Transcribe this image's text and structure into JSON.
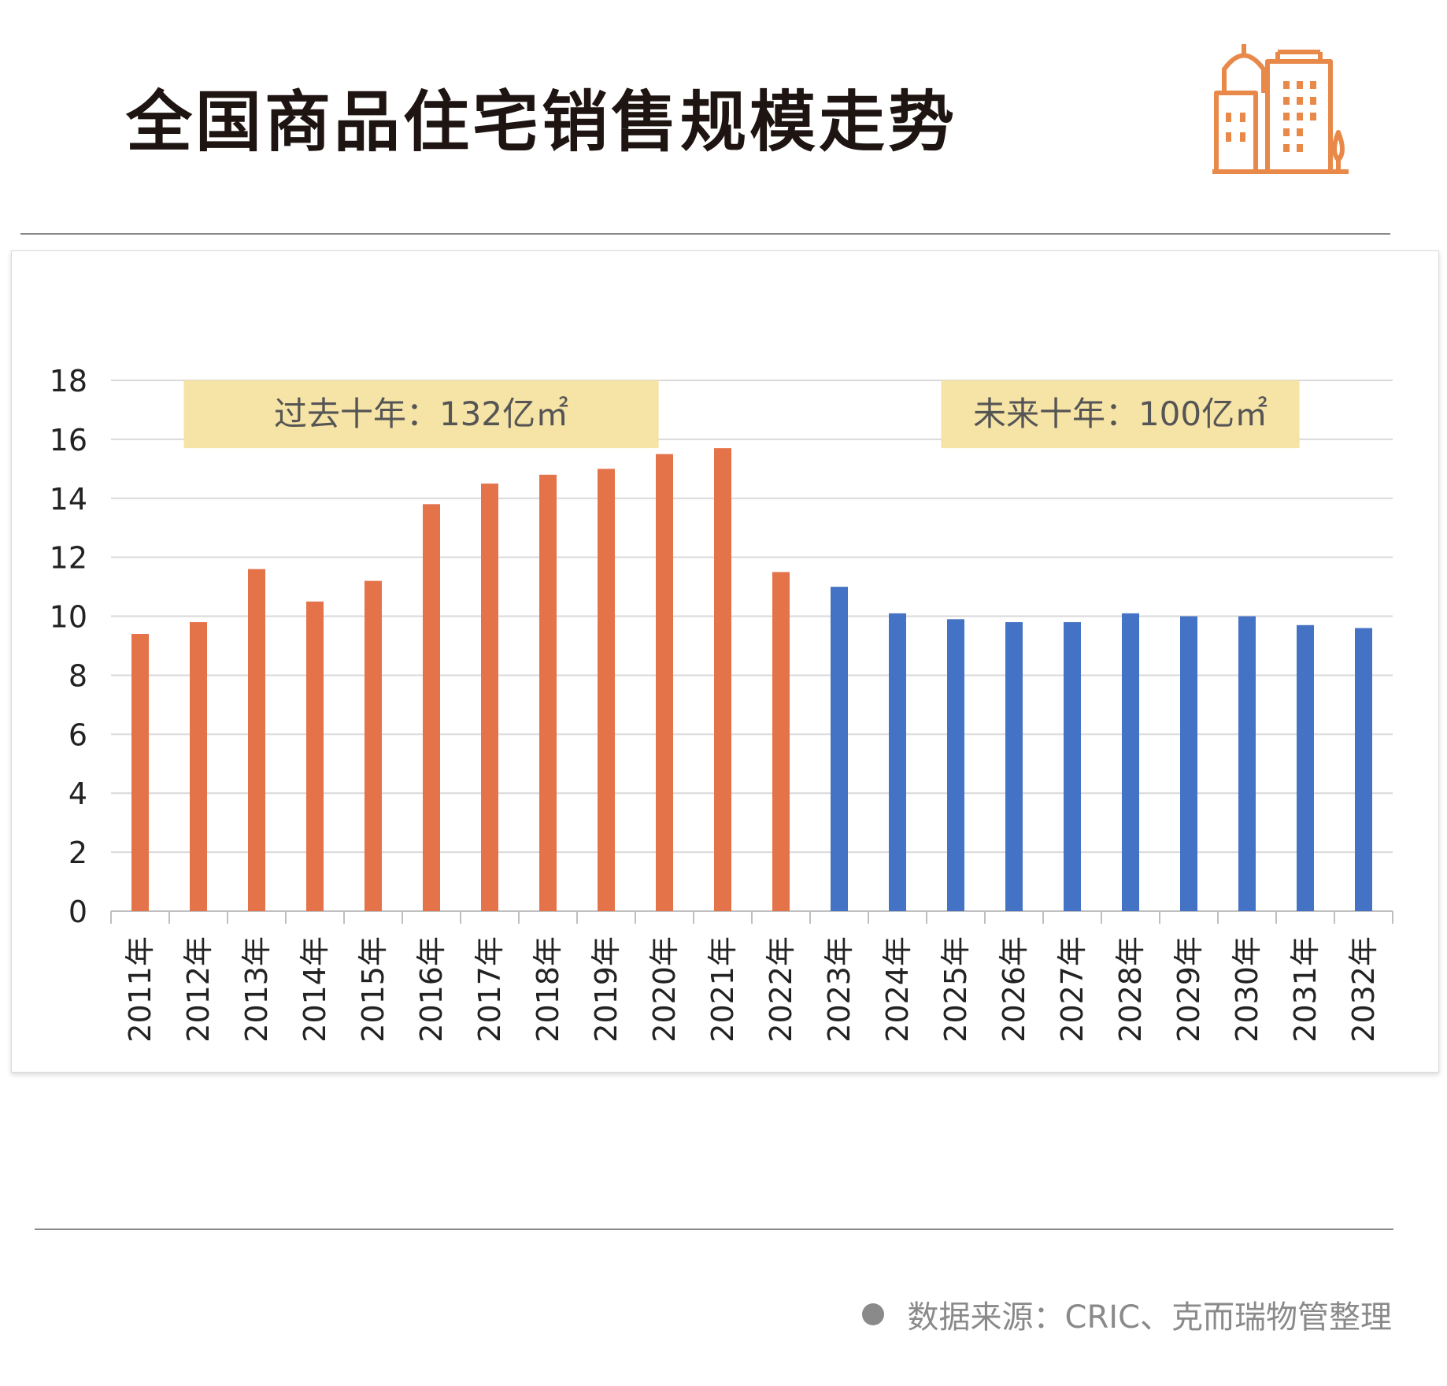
{
  "header": {
    "title": "全国商品住宅销售规模走势",
    "logo_icon": "city-buildings-icon",
    "logo_color": "#E8894A"
  },
  "footer": {
    "source_text": "数据来源：CRIC、克而瑞物管整理"
  },
  "colors": {
    "past_bar": "#E5734A",
    "future_bar": "#4472C4",
    "annotation_bg": "#F6E3A6",
    "grid": "#d9d9d9"
  },
  "chart_data": {
    "type": "bar",
    "title": "",
    "xlabel": "",
    "ylabel": "",
    "ylim": [
      0,
      18
    ],
    "yticks": [
      0,
      2,
      4,
      6,
      8,
      10,
      12,
      14,
      16,
      18
    ],
    "grid": true,
    "categories": [
      "2011年",
      "2012年",
      "2013年",
      "2014年",
      "2015年",
      "2016年",
      "2017年",
      "2018年",
      "2019年",
      "2020年",
      "2021年",
      "2022年",
      "2023年",
      "2024年",
      "2025年",
      "2026年",
      "2027年",
      "2028年",
      "2029年",
      "2030年",
      "2031年",
      "2032年"
    ],
    "values": [
      9.4,
      9.8,
      11.6,
      10.5,
      11.2,
      13.8,
      14.5,
      14.8,
      15.0,
      15.5,
      15.7,
      11.5,
      11.0,
      10.1,
      9.9,
      9.8,
      9.8,
      10.1,
      10.0,
      10.0,
      9.7,
      9.6
    ],
    "bar_colors": [
      "#E5734A",
      "#E5734A",
      "#E5734A",
      "#E5734A",
      "#E5734A",
      "#E5734A",
      "#E5734A",
      "#E5734A",
      "#E5734A",
      "#E5734A",
      "#E5734A",
      "#E5734A",
      "#4472C4",
      "#4472C4",
      "#4472C4",
      "#4472C4",
      "#4472C4",
      "#4472C4",
      "#4472C4",
      "#4472C4",
      "#4472C4",
      "#4472C4"
    ],
    "annotations": [
      {
        "text": "过去十年：132亿㎡",
        "category_range": [
          "2012年",
          "2020年"
        ]
      },
      {
        "text": "未来十年：100亿㎡",
        "category_range": [
          "2025年",
          "2031年"
        ]
      }
    ]
  }
}
